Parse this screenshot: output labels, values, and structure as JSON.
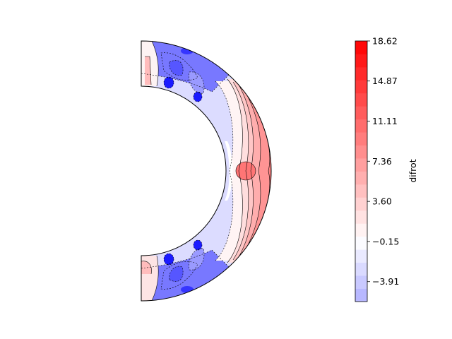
{
  "chart_data": {
    "type": "contour",
    "colorbar": {
      "label": "difrot",
      "vmin": -5.78,
      "vmax": 18.62,
      "levels": 20,
      "ticks": [
        {
          "value": -3.91,
          "label": "−3.91"
        },
        {
          "value": -0.15,
          "label": "−0.15"
        },
        {
          "value": 3.6,
          "label": "3.60"
        },
        {
          "value": 7.36,
          "label": "7.36"
        },
        {
          "value": 11.11,
          "label": "11.11"
        },
        {
          "value": 14.87,
          "label": "14.87"
        },
        {
          "value": 18.62,
          "label": "18.62"
        }
      ],
      "colormap": "bwr"
    },
    "domain": {
      "shape": "meridional half-annulus",
      "inner_radius_ratio": 0.65
    },
    "features": [
      {
        "description": "positive maximum near equator, outer region",
        "approx_value": 9.5
      },
      {
        "description": "negative minima near inner boundary at mid-latitudes",
        "approx_value": -5.5
      },
      {
        "description": "negative band near outer boundary at high latitudes",
        "approx_value": -3.5
      }
    ]
  }
}
